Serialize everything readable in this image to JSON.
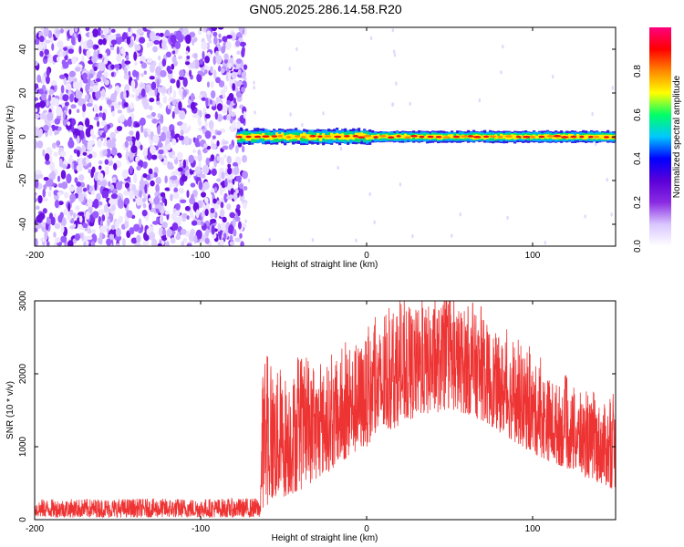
{
  "title": "GN05.2025.286.14.58.R20",
  "chart_data": [
    {
      "type": "heatmap",
      "name": "spectrogram",
      "xlabel": "Height of straight line (km)",
      "ylabel": "Frequency (Hz)",
      "xlim": [
        -200,
        150
      ],
      "ylim": [
        -50,
        50
      ],
      "x_ticks": [
        -200,
        -100,
        0,
        100
      ],
      "y_ticks": [
        -40,
        -20,
        0,
        20,
        40
      ],
      "noise_region_x": [
        -200,
        -73
      ],
      "signal_band": {
        "x_range": [
          -78,
          150
        ],
        "center_frequency": 0,
        "half_width_hz": 2
      },
      "colorbar": {
        "label": "Normalized spectral amplitude",
        "range": [
          0,
          1
        ],
        "ticks": [
          "0.0",
          "0.2",
          "0.4",
          "0.6",
          "0.8"
        ],
        "colors": [
          "#ffffff",
          "#d9c6ff",
          "#8a2be2",
          "#5a00d8",
          "#0000ff",
          "#00c8ff",
          "#00ff66",
          "#ffff00",
          "#ff8800",
          "#ff0000",
          "#ff0080"
        ]
      }
    },
    {
      "type": "line",
      "name": "snr",
      "xlabel": "Height of straight line (km)",
      "ylabel": "SNR (10 * v/v)",
      "xlim": [
        -200,
        150
      ],
      "ylim": [
        0,
        3000
      ],
      "x_ticks": [
        -200,
        -100,
        0,
        100
      ],
      "y_ticks": [
        0,
        1000,
        2000,
        3000
      ],
      "color": "#ee3333",
      "envelope": {
        "x": [
          -200,
          -150,
          -100,
          -80,
          -64,
          -63,
          -60,
          -50,
          -40,
          -30,
          -20,
          -10,
          0,
          10,
          20,
          30,
          40,
          50,
          60,
          70,
          80,
          90,
          100,
          110,
          120,
          130,
          140,
          150
        ],
        "low": [
          30,
          30,
          30,
          30,
          30,
          150,
          200,
          300,
          400,
          550,
          700,
          850,
          1000,
          1150,
          1300,
          1400,
          1450,
          1500,
          1450,
          1350,
          1200,
          1050,
          900,
          800,
          700,
          600,
          500,
          400
        ],
        "high": [
          280,
          290,
          290,
          290,
          300,
          2000,
          2100,
          2000,
          2050,
          2000,
          2100,
          2300,
          2500,
          2650,
          2800,
          2900,
          2950,
          2950,
          2900,
          2750,
          2500,
          2300,
          2150,
          1950,
          1800,
          1650,
          1600,
          1550
        ]
      }
    }
  ]
}
